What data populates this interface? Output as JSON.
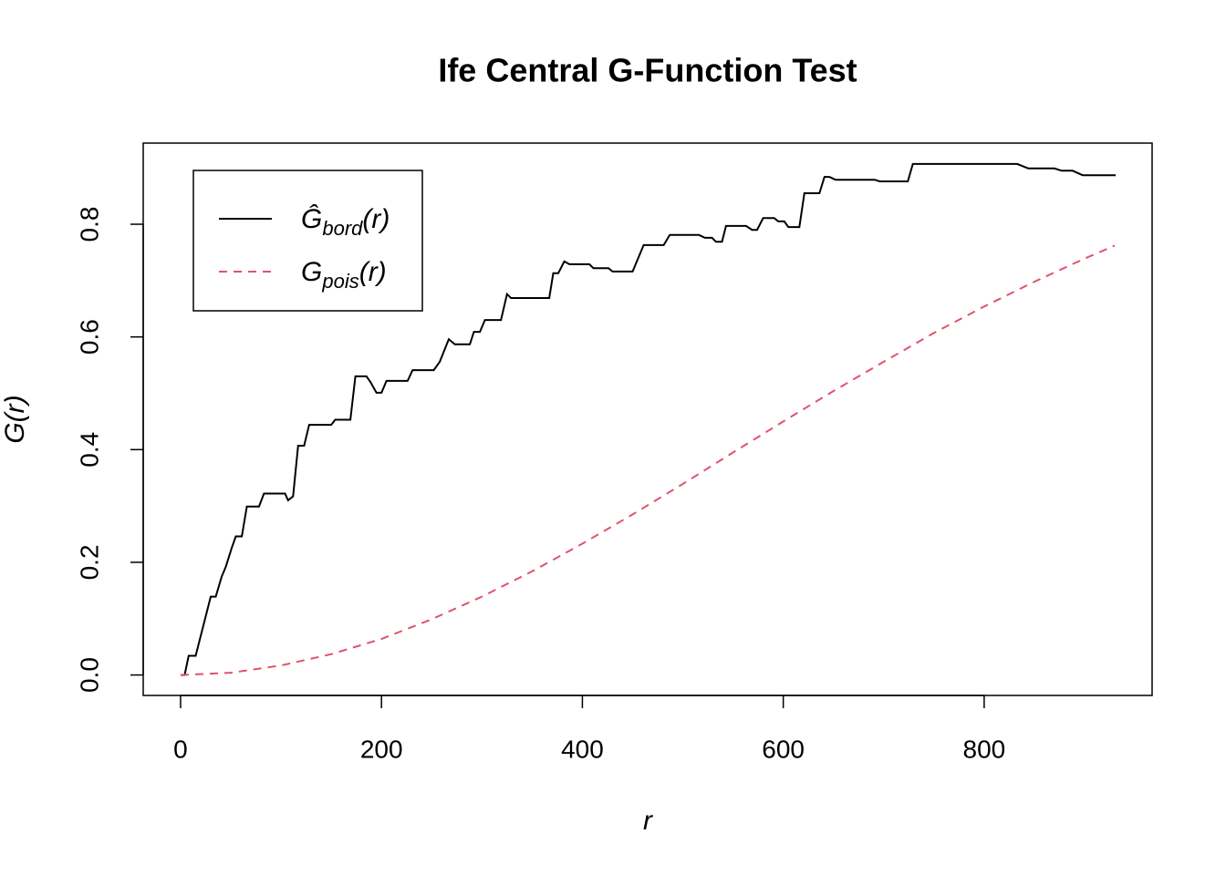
{
  "chart_data": {
    "type": "line",
    "title": "Ife Central G-Function Test",
    "xlabel": "r",
    "ylabel": "G(r)",
    "xlim": [
      -37.2,
      967.2
    ],
    "ylim": [
      -0.0363,
      0.944
    ],
    "xticks": [
      0,
      200,
      400,
      600,
      800
    ],
    "yticks": [
      {
        "value": 0,
        "label": "0.0"
      },
      0.2,
      0.4,
      0.6,
      0.8
    ],
    "grid": false,
    "legend": "top-left",
    "series": [
      {
        "name": "Ĝbord(r)",
        "color": "#000000",
        "linestyle": "solid",
        "x": [
          0,
          4,
          8,
          15,
          30,
          35,
          41,
          45,
          51,
          55,
          61,
          66,
          78,
          83,
          104,
          107,
          112,
          117,
          123,
          128,
          150,
          154,
          169,
          174,
          185,
          189,
          195,
          200,
          205,
          226,
          231,
          252,
          258,
          267,
          273,
          288,
          292,
          298,
          303,
          319,
          325,
          329,
          367,
          371,
          376,
          382,
          387,
          407,
          411,
          426,
          430,
          450,
          461,
          481,
          487,
          516,
          522,
          529,
          533,
          539,
          543,
          563,
          569,
          574,
          580,
          591,
          595,
          601,
          605,
          616,
          621,
          636,
          641,
          646,
          652,
          691,
          696,
          724,
          729,
          833,
          844,
          870,
          877,
          888,
          898,
          931
        ],
        "values": [
          0,
          0,
          0.034,
          0.034,
          0.139,
          0.139,
          0.175,
          0.192,
          0.226,
          0.246,
          0.246,
          0.299,
          0.299,
          0.322,
          0.322,
          0.31,
          0.317,
          0.407,
          0.407,
          0.444,
          0.444,
          0.453,
          0.453,
          0.53,
          0.53,
          0.52,
          0.501,
          0.501,
          0.522,
          0.522,
          0.541,
          0.541,
          0.556,
          0.596,
          0.587,
          0.587,
          0.609,
          0.609,
          0.63,
          0.63,
          0.676,
          0.669,
          0.669,
          0.713,
          0.713,
          0.734,
          0.729,
          0.729,
          0.722,
          0.722,
          0.716,
          0.716,
          0.763,
          0.763,
          0.781,
          0.781,
          0.776,
          0.776,
          0.769,
          0.769,
          0.797,
          0.797,
          0.79,
          0.79,
          0.811,
          0.811,
          0.805,
          0.805,
          0.795,
          0.795,
          0.855,
          0.855,
          0.884,
          0.884,
          0.879,
          0.879,
          0.876,
          0.876,
          0.907,
          0.907,
          0.899,
          0.899,
          0.895,
          0.895,
          0.887,
          0.887
        ]
      },
      {
        "name": "Gpois(r)",
        "color": "#DF536B",
        "linestyle": "dashed",
        "x": [
          0,
          50,
          100,
          150,
          200,
          250,
          300,
          350,
          400,
          450,
          500,
          550,
          600,
          650,
          700,
          750,
          800,
          850,
          900,
          930
        ],
        "values": [
          0,
          0.004,
          0.017,
          0.037,
          0.064,
          0.099,
          0.139,
          0.184,
          0.233,
          0.285,
          0.339,
          0.395,
          0.45,
          0.504,
          0.556,
          0.607,
          0.654,
          0.698,
          0.739,
          0.762
        ]
      }
    ]
  }
}
